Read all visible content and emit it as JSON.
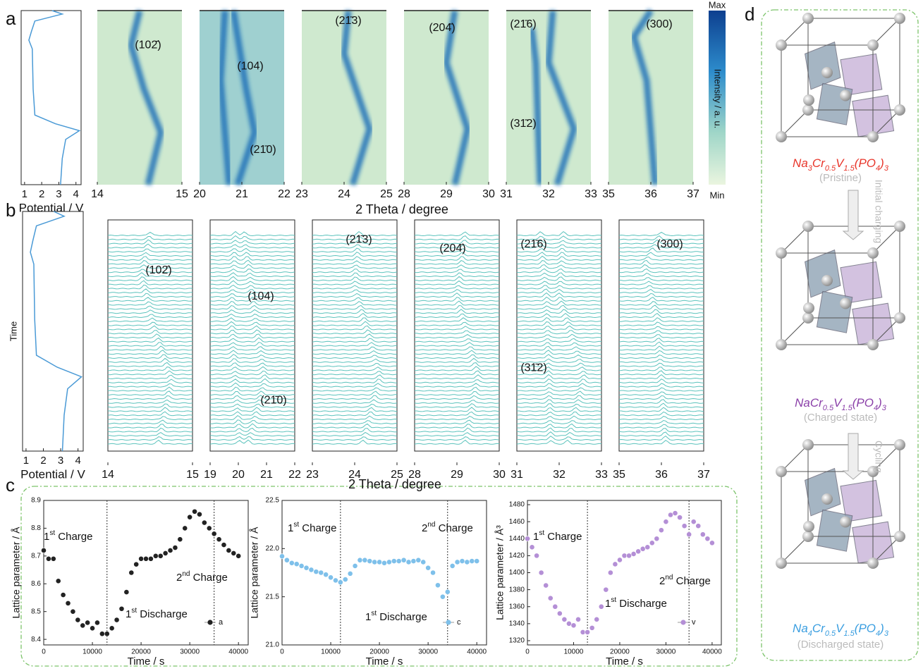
{
  "panel_labels": [
    "a",
    "b",
    "c",
    "d"
  ],
  "panel_a": {
    "potential": {
      "xlim": [
        0.8,
        4.3
      ],
      "xticks": [
        1,
        2,
        3,
        4
      ],
      "xlabel": "Potential / V"
    },
    "xlabel": "2 Theta / degree",
    "colorbar": {
      "max": "Max",
      "min": "Min",
      "label": "Intensity / a. u."
    },
    "maps": [
      {
        "xlim": [
          14,
          15
        ],
        "xticks": [
          14,
          15
        ],
        "annotations": [
          "(102̄)"
        ]
      },
      {
        "xlim": [
          20,
          22
        ],
        "xticks": [
          20,
          21,
          22
        ],
        "annotations": [
          "(104)",
          "(21̄0)"
        ]
      },
      {
        "xlim": [
          23,
          25
        ],
        "xticks": [
          23,
          24,
          25
        ],
        "annotations": [
          "(21̄3)"
        ]
      },
      {
        "xlim": [
          28,
          30
        ],
        "xticks": [
          28,
          29,
          30
        ],
        "annotations": [
          "(204̄)"
        ]
      },
      {
        "xlim": [
          31,
          33
        ],
        "xticks": [
          31,
          32,
          33
        ],
        "annotations": [
          "(21̄6)",
          "(31̄2)"
        ]
      },
      {
        "xlim": [
          35,
          37
        ],
        "xticks": [
          35,
          36,
          37
        ],
        "annotations": [
          "(300)"
        ]
      }
    ]
  },
  "panel_b": {
    "potential": {
      "xlim": [
        0.8,
        4.3
      ],
      "xticks": [
        1,
        2,
        3,
        4
      ],
      "xlabel": "Potential / V",
      "ylabel": "Time"
    },
    "xlabel": "2 Theta / degree",
    "stacks": [
      {
        "xlim": [
          14,
          15
        ],
        "xticks": [
          14,
          15
        ],
        "annotations": [
          "(102̄)"
        ]
      },
      {
        "xlim": [
          19,
          22
        ],
        "xticks": [
          19,
          20,
          21,
          22
        ],
        "annotations": [
          "(104)",
          "(21̄0)"
        ]
      },
      {
        "xlim": [
          23,
          25
        ],
        "xticks": [
          23,
          24,
          25
        ],
        "annotations": [
          "(21̄3)"
        ]
      },
      {
        "xlim": [
          28,
          30
        ],
        "xticks": [
          28,
          29,
          30
        ],
        "annotations": [
          "(204̄)"
        ]
      },
      {
        "xlim": [
          31,
          33
        ],
        "xticks": [
          31,
          32,
          33
        ],
        "annotations": [
          "(21̄6)",
          "(31̄2)"
        ]
      },
      {
        "xlim": [
          35,
          37
        ],
        "xticks": [
          35,
          36,
          37
        ],
        "annotations": [
          "(300)"
        ]
      }
    ]
  },
  "chart_data": [
    {
      "type": "scatter",
      "xlabel": "Time / s",
      "ylabel": "Lattice parameter / Å",
      "xlim": [
        0,
        42000
      ],
      "xticks": [
        0,
        10000,
        20000,
        30000,
        40000
      ],
      "ylim": [
        8.38,
        8.9
      ],
      "yticks": [
        8.4,
        8.5,
        8.6,
        8.7,
        8.8,
        8.9
      ],
      "vlines": [
        13000,
        35000
      ],
      "annotations": [
        "1st Charge",
        "2nd Charge",
        "1st Discharge"
      ],
      "x": [
        0,
        1000,
        2000,
        3000,
        4000,
        5000,
        6000,
        7000,
        8000,
        9000,
        10000,
        11000,
        12000,
        13000,
        14000,
        15000,
        16000,
        17000,
        18000,
        19000,
        20000,
        21000,
        22000,
        23000,
        24000,
        25000,
        26000,
        27000,
        28000,
        29000,
        30000,
        31000,
        32000,
        33000,
        34000,
        35000,
        36000,
        37000,
        38000,
        39000,
        40000
      ],
      "series": [
        {
          "name": "a",
          "color": "#222222",
          "values": [
            8.72,
            8.69,
            8.69,
            8.61,
            8.56,
            8.53,
            8.5,
            8.47,
            8.45,
            8.46,
            8.44,
            8.46,
            8.42,
            8.42,
            8.44,
            8.47,
            8.51,
            8.57,
            8.64,
            8.67,
            8.69,
            8.69,
            8.69,
            8.7,
            8.7,
            8.71,
            8.72,
            8.73,
            8.76,
            8.8,
            8.84,
            8.86,
            8.85,
            8.82,
            8.8,
            8.78,
            8.76,
            8.74,
            8.72,
            8.71,
            8.7
          ]
        }
      ]
    },
    {
      "type": "scatter",
      "xlabel": "Time / s",
      "ylabel": "Lattice parameter / Å",
      "xlim": [
        0,
        42000
      ],
      "xticks": [
        0,
        10000,
        20000,
        30000,
        40000
      ],
      "ylim": [
        21,
        22.5
      ],
      "yticks": [
        {
          "value": 21,
          "label": "21.0"
        },
        21.5,
        {
          "value": 22,
          "label": "22.0"
        },
        22.5
      ],
      "vlines": [
        12000,
        34000
      ],
      "annotations": [
        "1st Charge",
        "2nd Charge",
        "1st Discharge"
      ],
      "x": [
        0,
        1000,
        2000,
        3000,
        4000,
        5000,
        6000,
        7000,
        8000,
        9000,
        10000,
        11000,
        12000,
        13000,
        14000,
        15000,
        16000,
        17000,
        18000,
        19000,
        20000,
        21000,
        22000,
        23000,
        24000,
        25000,
        26000,
        27000,
        28000,
        29000,
        30000,
        31000,
        32000,
        33000,
        34000,
        35000,
        36000,
        37000,
        38000,
        39000,
        40000
      ],
      "series": [
        {
          "name": "c",
          "color": "#7ec0ea",
          "values": [
            21.92,
            21.88,
            21.85,
            21.84,
            21.82,
            21.8,
            21.78,
            21.76,
            21.75,
            21.73,
            21.7,
            21.67,
            21.65,
            21.68,
            21.74,
            21.82,
            21.88,
            21.88,
            21.87,
            21.86,
            21.86,
            21.85,
            21.86,
            21.87,
            21.87,
            21.88,
            21.86,
            21.87,
            21.88,
            21.86,
            21.8,
            21.75,
            21.62,
            21.5,
            21.55,
            21.82,
            21.86,
            21.87,
            21.86,
            21.87,
            21.87
          ]
        }
      ]
    },
    {
      "type": "scatter",
      "xlabel": "Time / s",
      "ylabel": "Lattice parameter / Å³",
      "xlim": [
        0,
        42000
      ],
      "xticks": [
        0,
        10000,
        20000,
        30000,
        40000
      ],
      "ylim": [
        1315,
        1485
      ],
      "yticks": [
        1320,
        1340,
        1360,
        1380,
        1400,
        1420,
        1440,
        1460,
        1480
      ],
      "vlines": [
        13000,
        35000
      ],
      "annotations": [
        "1st Charge",
        "2nd Charge",
        "1st Discharge"
      ],
      "x": [
        0,
        1000,
        2000,
        3000,
        4000,
        5000,
        6000,
        7000,
        8000,
        9000,
        10000,
        11000,
        12000,
        13000,
        14000,
        15000,
        16000,
        17000,
        18000,
        19000,
        20000,
        21000,
        22000,
        23000,
        24000,
        25000,
        26000,
        27000,
        28000,
        29000,
        30000,
        31000,
        32000,
        33000,
        34000,
        35000,
        36000,
        37000,
        38000,
        39000,
        40000
      ],
      "series": [
        {
          "name": "v",
          "color": "#b48fd6",
          "values": [
            1440,
            1430,
            1420,
            1400,
            1385,
            1370,
            1360,
            1352,
            1345,
            1340,
            1338,
            1345,
            1330,
            1330,
            1335,
            1345,
            1360,
            1380,
            1400,
            1410,
            1415,
            1420,
            1420,
            1422,
            1425,
            1428,
            1430,
            1435,
            1440,
            1450,
            1460,
            1468,
            1470,
            1465,
            1455,
            1445,
            1460,
            1455,
            1445,
            1440,
            1435
          ]
        }
      ]
    }
  ],
  "panel_d": {
    "structures": [
      {
        "formula": [
          "Na",
          "3",
          "Cr",
          "0.5",
          "V",
          "1.5",
          "(PO",
          "4",
          ")",
          "3"
        ],
        "state": "(Pristine)",
        "color": "#e8352a"
      },
      {
        "formula": [
          "Na",
          "",
          "Cr",
          "0.5",
          "V",
          "1.5",
          "(PO",
          "4",
          ")",
          "3"
        ],
        "state": "(Charged state)",
        "color": "#8a3fa8"
      },
      {
        "formula": [
          "Na",
          "4",
          "Cr",
          "0.5",
          "V",
          "1.5",
          "(PO",
          "4",
          ")",
          "3"
        ],
        "state": "(Discharged state)",
        "color": "#3a9ee0"
      }
    ],
    "arrows": [
      "Initial charging",
      "Cycling"
    ]
  }
}
